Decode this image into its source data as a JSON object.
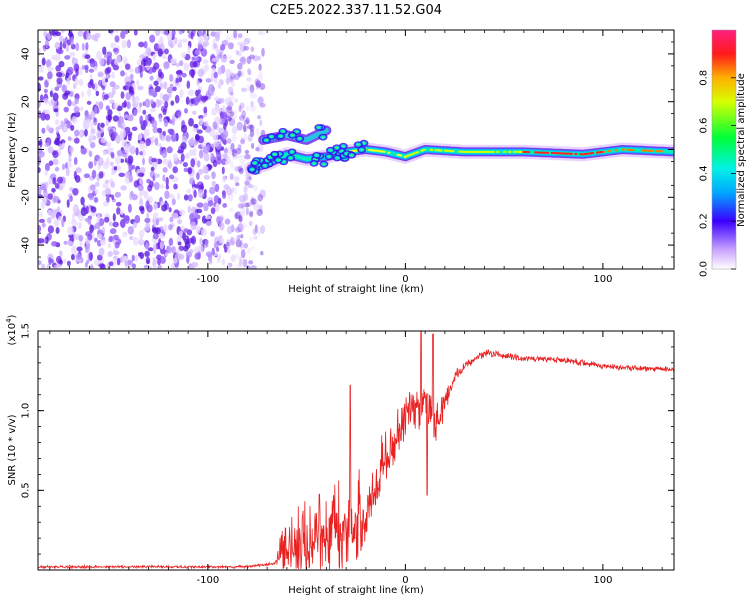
{
  "title": "C2E5.2022.337.11.52.G04",
  "chart_data": [
    {
      "type": "heatmap",
      "name": "spectrogram",
      "xlabel": "Height of straight line (km)",
      "ylabel": "Frequency (Hz)",
      "xlim": [
        -186,
        136
      ],
      "ylim": [
        -50,
        50
      ],
      "xticks": [
        -100,
        0,
        100
      ],
      "yticks": [
        -40,
        -20,
        0,
        20,
        40
      ],
      "colorbar": {
        "label": "Normalized spectral amplitude",
        "range": [
          0,
          1
        ],
        "ticks": [
          0.0,
          0.2,
          0.4,
          0.6,
          0.8
        ],
        "colormap": "rainbow"
      },
      "features": {
        "noise_region_x": [
          -186,
          -78
        ],
        "dominant_frequency_track": [
          {
            "x": -78,
            "y": -8
          },
          {
            "x": -70,
            "y": -6
          },
          {
            "x": -60,
            "y": -2
          },
          {
            "x": -50,
            "y": -4
          },
          {
            "x": -40,
            "y": -3
          },
          {
            "x": -30,
            "y": -1
          },
          {
            "x": -20,
            "y": 0
          },
          {
            "x": -10,
            "y": -1
          },
          {
            "x": 0,
            "y": -3
          },
          {
            "x": 10,
            "y": 0
          },
          {
            "x": 30,
            "y": -1
          },
          {
            "x": 60,
            "y": -1
          },
          {
            "x": 90,
            "y": -2
          },
          {
            "x": 110,
            "y": 0
          },
          {
            "x": 136,
            "y": -1
          }
        ],
        "branch_track": [
          {
            "x": -72,
            "y": 4
          },
          {
            "x": -60,
            "y": 6
          },
          {
            "x": -50,
            "y": 4
          },
          {
            "x": -40,
            "y": 8
          }
        ]
      }
    },
    {
      "type": "line",
      "name": "snr",
      "xlabel": "Height of straight line (km)",
      "ylabel": "SNR (10 * v/v)",
      "y_multiplier": "(x10",
      "y_multiplier_exp": "4",
      "y_multiplier_close": ")",
      "xlim": [
        -186,
        136
      ],
      "ylim": [
        0,
        1.5
      ],
      "xticks": [
        -100,
        0,
        100
      ],
      "yticks": [
        0.5,
        1.0,
        1.5
      ],
      "ytick_labels": [
        "0.5",
        "1.0",
        "1.5"
      ],
      "color": "#e82020",
      "series_profile": [
        {
          "x": -186,
          "y": 0.02
        },
        {
          "x": -100,
          "y": 0.02
        },
        {
          "x": -80,
          "y": 0.02
        },
        {
          "x": -66,
          "y": 0.04
        },
        {
          "x": -60,
          "y": 0.2
        },
        {
          "x": -50,
          "y": 0.24
        },
        {
          "x": -40,
          "y": 0.3
        },
        {
          "x": -30,
          "y": 0.32
        },
        {
          "x": -20,
          "y": 0.42
        },
        {
          "x": -15,
          "y": 0.6
        },
        {
          "x": -10,
          "y": 0.75
        },
        {
          "x": -5,
          "y": 0.85
        },
        {
          "x": 0,
          "y": 0.95
        },
        {
          "x": 10,
          "y": 1.1
        },
        {
          "x": 15,
          "y": 0.9
        },
        {
          "x": 20,
          "y": 1.05
        },
        {
          "x": 25,
          "y": 1.2
        },
        {
          "x": 30,
          "y": 1.28
        },
        {
          "x": 40,
          "y": 1.36
        },
        {
          "x": 60,
          "y": 1.33
        },
        {
          "x": 80,
          "y": 1.32
        },
        {
          "x": 100,
          "y": 1.28
        },
        {
          "x": 110,
          "y": 1.27
        },
        {
          "x": 136,
          "y": 1.26
        }
      ],
      "noise_amplitude_profile": [
        {
          "x": -186,
          "y": 0.01
        },
        {
          "x": -66,
          "y": 0.01
        },
        {
          "x": -62,
          "y": 0.2
        },
        {
          "x": -40,
          "y": 0.3
        },
        {
          "x": -22,
          "y": 0.32
        },
        {
          "x": -15,
          "y": 0.2
        },
        {
          "x": -5,
          "y": 0.18
        },
        {
          "x": 10,
          "y": 0.2
        },
        {
          "x": 22,
          "y": 0.08
        },
        {
          "x": 30,
          "y": 0.03
        },
        {
          "x": 136,
          "y": 0.02
        }
      ],
      "spikes": [
        {
          "x": -28,
          "y": 1.16
        },
        {
          "x": 8,
          "y": 1.5
        },
        {
          "x": 14,
          "y": 1.48
        },
        {
          "x": 11,
          "y": 0.47
        }
      ]
    }
  ]
}
